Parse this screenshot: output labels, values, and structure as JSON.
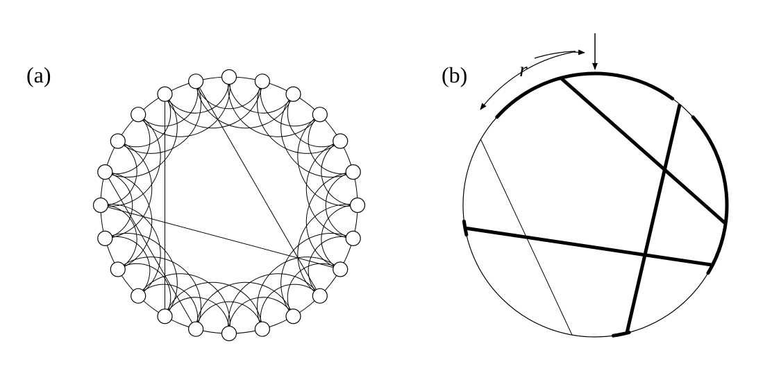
{
  "panels": [
    {
      "label": "(a)"
    },
    {
      "label": "(b)"
    }
  ],
  "panel_b": {
    "range_label": "r"
  },
  "colors": {
    "ink": "#000000",
    "node_fill": "#ffffff",
    "background": "#ffffff"
  }
}
